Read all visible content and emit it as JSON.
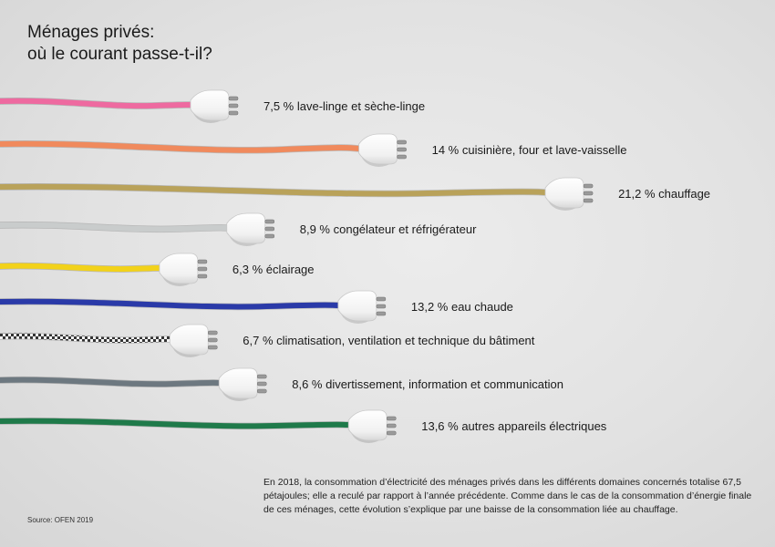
{
  "title": [
    "Ménages privés:",
    "où le courant passe-t-il?"
  ],
  "chart_data": {
    "type": "bar",
    "unit": "%",
    "categories": [
      "lave-linge et sèche-linge",
      "cuisinière, four et lave-vaisselle",
      "chauffage",
      "congélateur et réfrigérateur",
      "éclairage",
      "eau chaude",
      "climatisation, ventilation et technique du bâtiment",
      "divertissement, information et communication",
      "autres appareils électriques"
    ],
    "values": [
      7.5,
      14,
      21.2,
      8.9,
      6.3,
      13.2,
      6.7,
      8.6,
      13.6
    ],
    "labels": [
      "7,5 % lave-linge et sèche-linge",
      "14 % cuisinière, four et lave-vaisselle",
      "21,2 % chauffage",
      "8,9 % congélateur et réfrigérateur",
      "6,3 % éclairage",
      "13,2 % eau chaude",
      "6,7 % climatisation, ventilation et technique du bâtiment",
      "8,6 % divertissement, information et communication",
      "13,6 % autres appareils électriques"
    ],
    "cable_colors": [
      "#ee6aa0",
      "#f08a5d",
      "#b9a25a",
      "#c9cccc",
      "#f2d21a",
      "#2a3aa8",
      "#555b5e",
      "#6d7880",
      "#1f7a4a"
    ]
  },
  "source": "Source: OFEN 2019",
  "note": "En 2018, la consommation d’électricité des ménages privés dans les différents domaines concernés totalise 67,5 pétajoules; elle a reculé par rapport à l’année précédente. Comme dans le cas de la consommation d’énergie finale de ces ménages, cette évolution s’explique par une baisse de la consommation liée au chauffage."
}
